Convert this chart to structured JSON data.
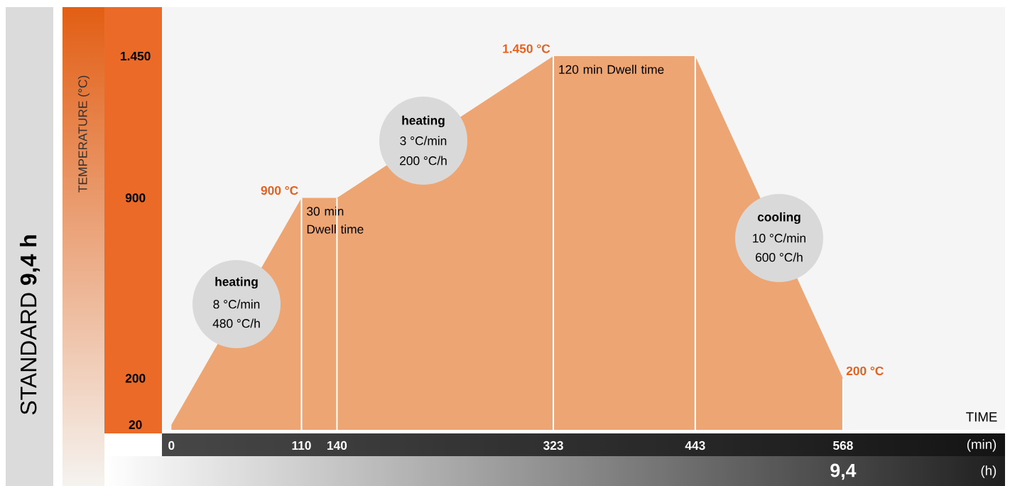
{
  "chart_data": {
    "type": "area",
    "title": "STANDARD **9,4 h**",
    "xlabel": "TIME",
    "ylabel": "TEMPERATURE (°C)",
    "x": [
      0,
      110,
      140,
      323,
      443,
      568
    ],
    "xlim": [
      -8,
      705
    ],
    "xticks": [
      0,
      110,
      140,
      323,
      443,
      568
    ],
    "ylim": [
      0,
      1640
    ],
    "yticks": [
      20,
      200,
      900,
      {
        "value": 1450,
        "label": "1.450"
      }
    ],
    "series": [
      {
        "color": "#eda673",
        "values": [
          20,
          900,
          900,
          1450,
          1450,
          200
        ],
        "value_labels": [
          null,
          "900 °C",
          null,
          "1.450 °C",
          null,
          "200 °C"
        ]
      }
    ],
    "ref_lines": [
      {
        "axis": "x",
        "value": 110,
        "label": "30 min Dwell time",
        "color": "#ffffff"
      },
      {
        "axis": "x",
        "value": 140,
        "color": "#ffffff"
      },
      {
        "axis": "x",
        "value": 323,
        "label": "120 min Dwell time",
        "color": "#ffffff"
      },
      {
        "axis": "x",
        "value": 443,
        "color": "#ffffff"
      },
      {
        "axis": "x",
        "value": 568,
        "color": "#ffffff"
      }
    ],
    "annotations": [
      "**heating**",
      "8 °C/min",
      "480 °C/h",
      "**heating**",
      "3 °C/min",
      "200 °C/h",
      "**cooling**",
      "10 °C/min",
      "600 °C/h",
      "(min)",
      "(h)",
      "9,4"
    ]
  }
}
